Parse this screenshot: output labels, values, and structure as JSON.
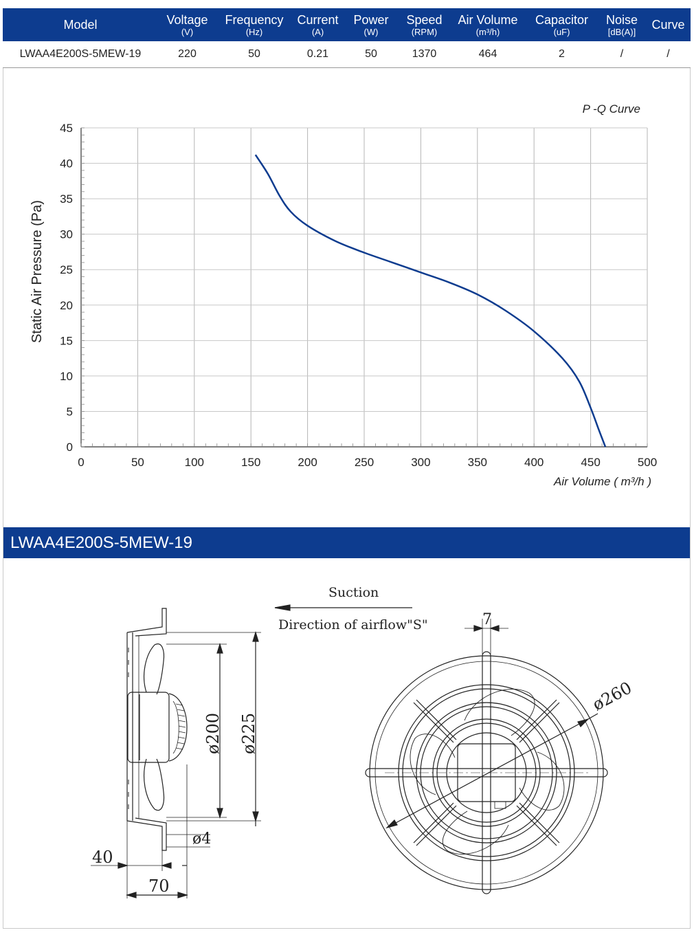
{
  "table": {
    "headers": [
      {
        "name": "Model",
        "unit": ""
      },
      {
        "name": "Voltage",
        "unit": "(V)"
      },
      {
        "name": "Frequency",
        "unit": "(Hz)"
      },
      {
        "name": "Current",
        "unit": "(A)"
      },
      {
        "name": "Power",
        "unit": "(W)"
      },
      {
        "name": "Speed",
        "unit": "(RPM)"
      },
      {
        "name": "Air Volume",
        "unit": "(m³/h)"
      },
      {
        "name": "Capacitor",
        "unit": "(uF)"
      },
      {
        "name": "Noise",
        "unit": "[dB(A)]"
      },
      {
        "name": "Curve",
        "unit": ""
      }
    ],
    "row": [
      "LWAA4E200S-5MEW-19",
      "220",
      "50",
      "0.21",
      "50",
      "1370",
      "464",
      "2",
      "/",
      "/"
    ]
  },
  "chart_data": {
    "type": "line",
    "title": "P -Q Curve",
    "xlabel": "Air Volume ( m³/h )",
    "ylabel": "Static Air Pressure  (Pa)",
    "xlim": [
      0,
      500
    ],
    "ylim": [
      0,
      45
    ],
    "xticks": [
      "0",
      "50",
      "100",
      "150",
      "200",
      "250",
      "300",
      "350",
      "400",
      "450",
      "500"
    ],
    "yticks": [
      "0",
      "5",
      "10",
      "15",
      "20",
      "25",
      "30",
      "35",
      "40",
      "45"
    ],
    "grid": true,
    "line_color": "#0d3c8f",
    "series": [
      {
        "x": [
          154,
          165,
          175,
          185,
          200,
          225,
          250,
          275,
          300,
          325,
          350,
          375,
          400,
          425,
          440,
          450,
          457,
          463
        ],
        "y": [
          41.2,
          38.5,
          35.5,
          33.2,
          31.2,
          29.0,
          27.4,
          26.0,
          24.6,
          23.2,
          21.5,
          19.2,
          16.3,
          12.5,
          9.2,
          5.5,
          2.5,
          0
        ]
      }
    ]
  },
  "model_banner": "LWAA4E200S-5MEW-19",
  "drawing": {
    "suction": "Suction",
    "direction": "Direction of airflow\"S\"",
    "dim_200": "ø200",
    "dim_225": "ø225",
    "dim_4": "ø4",
    "dim_40": "40",
    "dim_70": "70",
    "dim_7": "7",
    "dim_260": "ø260"
  }
}
